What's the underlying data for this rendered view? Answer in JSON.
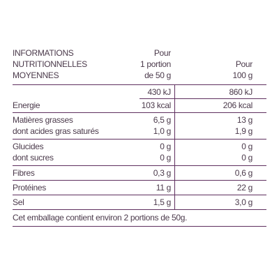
{
  "header": {
    "title": [
      "INFORMATIONS",
      "NUTRITIONNELLES",
      "MOYENNES"
    ],
    "portion": [
      "Pour",
      "1 portion",
      "de 50 g"
    ],
    "per100": [
      "Pour",
      "100 g"
    ]
  },
  "energy": {
    "label": "Energie",
    "portion": [
      "430 kJ",
      "103 kcal"
    ],
    "per100": [
      "860 kJ",
      "206 kcal"
    ]
  },
  "rows": [
    {
      "labels": [
        "Matières grasses",
        "dont acides gras saturés"
      ],
      "portion": [
        "6,5 g",
        "1,0 g"
      ],
      "per100": [
        "13 g",
        "1,9 g"
      ]
    },
    {
      "labels": [
        "Glucides",
        "dont sucres"
      ],
      "portion": [
        "0 g",
        "0 g"
      ],
      "per100": [
        "0 g",
        "0 g"
      ]
    },
    {
      "labels": [
        "Fibres"
      ],
      "portion": [
        "0,3 g"
      ],
      "per100": [
        "0,6 g"
      ]
    },
    {
      "labels": [
        "Protéines"
      ],
      "portion": [
        "11 g"
      ],
      "per100": [
        "22 g"
      ]
    },
    {
      "labels": [
        "Sel"
      ],
      "portion": [
        "1,5 g"
      ],
      "per100": [
        "3,0 g"
      ]
    }
  ],
  "footer": "Cet emballage contient environ 2 portions de 50g."
}
